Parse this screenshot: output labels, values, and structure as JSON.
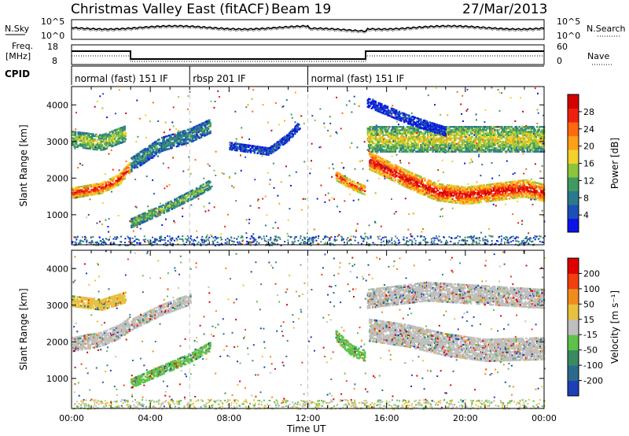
{
  "header": {
    "station": "Christmas Valley East (fitACF)",
    "beam": "Beam 19",
    "date": "27/Mar/2013"
  },
  "left_labels": {
    "nsky": "N.Sky",
    "freq_line1": "Freq.",
    "freq_line2": "[MHz]",
    "cpid": "CPID"
  },
  "right_labels": {
    "nsearch": "N.Search",
    "nave": "Nave"
  },
  "noise_axis": {
    "top": "10^5",
    "bottom": "10^0"
  },
  "freq_axis": {
    "ticks": [
      "18",
      "8"
    ]
  },
  "nave_axis": {
    "ticks": [
      "60",
      "0"
    ]
  },
  "cpid_segments": [
    {
      "label": "normal (fast) 151 IF",
      "start_hour": 0,
      "end_hour": 6
    },
    {
      "label": "rbsp 201 IF",
      "start_hour": 6,
      "end_hour": 12
    },
    {
      "label": "normal (fast) 151 IF",
      "start_hour": 12,
      "end_hour": 24
    }
  ],
  "chart_data": [
    {
      "type": "heatmap",
      "title": "Power",
      "xlabel": "Time UT",
      "ylabel": "Slant Range [km]",
      "xlim_hours": [
        0,
        24
      ],
      "ylim": [
        180,
        4500
      ],
      "x_ticks": [
        "00:00",
        "04:00",
        "08:00",
        "12:00",
        "16:00",
        "20:00",
        "00:00"
      ],
      "y_ticks": [
        1000,
        2000,
        3000,
        4000
      ],
      "colorbar": {
        "label": "Power [dB]",
        "ticks": [
          "4",
          "8",
          "12",
          "16",
          "20",
          "24",
          "28"
        ],
        "colors": [
          "#0a14e6",
          "#1d4fb8",
          "#2a7a8c",
          "#3f9a62",
          "#8cc43c",
          "#f0d22a",
          "#ffa018",
          "#ff6a10",
          "#f02010",
          "#d40000"
        ]
      },
      "bands": [
        {
          "label": "main band",
          "points": [
            [
              0.0,
              1620
            ],
            [
              1.5,
              1760
            ],
            [
              2.4,
              2000
            ],
            [
              2.9,
              2300
            ]
          ],
          "width_km": 280,
          "level": 0.92
        },
        {
          "label": "main band",
          "points": [
            [
              13.4,
              2100
            ],
            [
              14.2,
              1850
            ],
            [
              14.9,
              1700
            ]
          ],
          "width_km": 260,
          "level": 0.85
        },
        {
          "label": "main band",
          "points": [
            [
              15.1,
              2500
            ],
            [
              17.0,
              2000
            ],
            [
              18.5,
              1650
            ],
            [
              20.0,
              1550
            ],
            [
              21.5,
              1650
            ],
            [
              23.0,
              1750
            ],
            [
              24.0,
              1620
            ]
          ],
          "width_km": 460,
          "level": 0.95
        },
        {
          "label": "lower arc",
          "points": [
            [
              3.0,
              800
            ],
            [
              4.5,
              1150
            ],
            [
              6.0,
              1550
            ],
            [
              7.0,
              1850
            ]
          ],
          "width_km": 230,
          "level": 0.45
        },
        {
          "label": "upper arc",
          "points": [
            [
              3.0,
              2400
            ],
            [
              4.5,
              2950
            ],
            [
              6.0,
              3200
            ],
            [
              7.0,
              3450
            ]
          ],
          "width_km": 380,
          "level": 0.3
        },
        {
          "label": "morning band",
          "points": [
            [
              0.0,
              3100
            ],
            [
              1.5,
              3000
            ],
            [
              2.7,
              3250
            ]
          ],
          "width_km": 420,
          "level": 0.5
        },
        {
          "label": "mid arc",
          "points": [
            [
              8.0,
              2900
            ],
            [
              10.0,
              2750
            ],
            [
              11.0,
              3150
            ],
            [
              11.6,
              3500
            ]
          ],
          "width_km": 180,
          "level": 0.15
        },
        {
          "label": "evening top",
          "points": [
            [
              15.0,
              3100
            ],
            [
              18.0,
              3100
            ],
            [
              21.0,
              3100
            ],
            [
              24.0,
              3100
            ]
          ],
          "width_km": 700,
          "level": 0.55
        },
        {
          "label": "afternoon arc",
          "points": [
            [
              15.0,
              4100
            ],
            [
              17.0,
              3650
            ],
            [
              19.0,
              3300
            ]
          ],
          "width_km": 250,
          "level": 0.1
        }
      ]
    },
    {
      "type": "heatmap",
      "title": "Velocity",
      "xlabel": "Time UT",
      "ylabel": "Slant Range [km]",
      "xlim_hours": [
        0,
        24
      ],
      "ylim": [
        180,
        4500
      ],
      "x_ticks": [
        "00:00",
        "04:00",
        "08:00",
        "12:00",
        "16:00",
        "20:00",
        "00:00"
      ],
      "y_ticks": [
        1000,
        2000,
        3000,
        4000
      ],
      "colorbar": {
        "label": "Velocity [m s⁻¹]",
        "ticks": [
          "200",
          "100",
          "50",
          "15",
          "-15",
          "-50",
          "-100",
          "-200"
        ],
        "colors": [
          "#1d3fb8",
          "#2c6a8c",
          "#3a8a60",
          "#5cc24a",
          "#bfbfbf",
          "#e8c040",
          "#f08c1c",
          "#f04010",
          "#e00000"
        ]
      },
      "bands": [
        {
          "label": "main band",
          "points": [
            [
              0.0,
              1950
            ],
            [
              1.5,
              2100
            ],
            [
              2.4,
              2300
            ],
            [
              2.9,
              2500
            ]
          ],
          "width_km": 360,
          "color": "#bfbfbf"
        },
        {
          "label": "main band",
          "points": [
            [
              15.1,
              2350
            ],
            [
              17.0,
              2200
            ],
            [
              19.0,
              1950
            ],
            [
              21.0,
              1800
            ],
            [
              24.0,
              1850
            ]
          ],
          "width_km": 600,
          "color": "#bfbfbf"
        },
        {
          "label": "lower arc",
          "points": [
            [
              3.0,
              900
            ],
            [
              4.5,
              1250
            ],
            [
              6.0,
              1600
            ],
            [
              7.0,
              1900
            ]
          ],
          "width_km": 250,
          "color": "#5cc24a"
        },
        {
          "label": "upper arc",
          "points": [
            [
              3.0,
              2500
            ],
            [
              4.5,
              2900
            ],
            [
              6.0,
              3200
            ]
          ],
          "width_km": 300,
          "color": "#bfbfbf"
        },
        {
          "label": "wake",
          "points": [
            [
              13.4,
              2200
            ],
            [
              14.2,
              1800
            ],
            [
              14.9,
              1650
            ]
          ],
          "width_km": 300,
          "color": "#5cc24a"
        },
        {
          "label": "morning band",
          "points": [
            [
              0.0,
              3150
            ],
            [
              1.5,
              3050
            ],
            [
              2.7,
              3250
            ]
          ],
          "width_km": 300,
          "color": "#e8c040"
        },
        {
          "label": "evening top",
          "points": [
            [
              15.0,
              3200
            ],
            [
              18.0,
              3400
            ],
            [
              21.0,
              3300
            ],
            [
              24.0,
              3200
            ]
          ],
          "width_km": 500,
          "color": "#bfbfbf"
        }
      ]
    }
  ]
}
